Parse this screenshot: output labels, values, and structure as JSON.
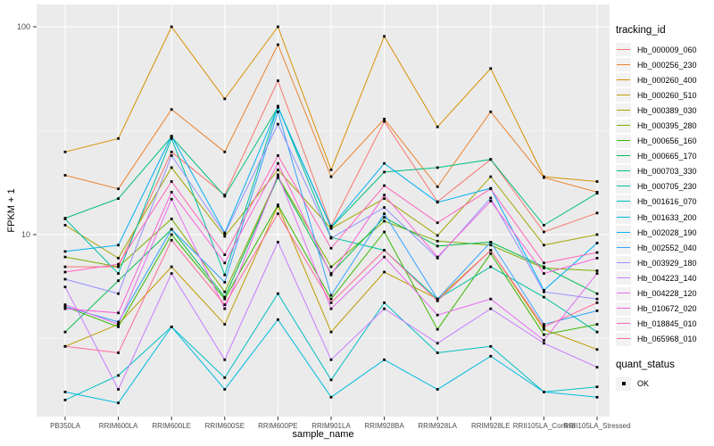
{
  "chart_data": {
    "type": "line",
    "title": "",
    "xlabel": "sample_name",
    "ylabel": "FPKM + 1",
    "y_scale": "log10",
    "ylim": [
      1.33,
      128
    ],
    "y_ticks": [
      10,
      100
    ],
    "y_minor_ticks": [
      3.162,
      31.62
    ],
    "grid": true,
    "panel_bg": "#EBEBEB",
    "grid_color": "#FFFFFF",
    "tick_color": "#333333",
    "tick_label_color": "#4D4D4D",
    "legend_position": "right",
    "legend_color_title": "tracking_id",
    "marker": {
      "shape": "square",
      "color": "#000000",
      "legend_title": "quant_status",
      "label": "OK"
    },
    "categories": [
      "PB350LA",
      "RRIM600LA",
      "RRIM600LE",
      "RRIM600SE",
      "RRIM600PE",
      "RRIM901LA",
      "RRIM928BA",
      "RRIM928LA",
      "RRIM928LE",
      "RRII105LA_Control",
      "RRII105LA_Stressed"
    ],
    "series": [
      {
        "name": "Hb_000009_060",
        "color": "#F8766D",
        "values": [
          7.0,
          7.0,
          25,
          15.5,
          55,
          11,
          35,
          14.4,
          23,
          10.3,
          12.7
        ]
      },
      {
        "name": "Hb_000256_230",
        "color": "#EA8331",
        "values": [
          19.3,
          16.6,
          40,
          25,
          82,
          19,
          36,
          17,
          39,
          18.8,
          16
        ]
      },
      {
        "name": "Hb_000260_400",
        "color": "#D89000",
        "values": [
          25,
          29,
          100,
          45,
          100,
          20.5,
          90,
          33,
          63,
          19,
          18
        ]
      },
      {
        "name": "Hb_000260_510",
        "color": "#C09B00",
        "values": [
          2.9,
          3.7,
          7.0,
          3.7,
          13.7,
          3.4,
          6.6,
          4.9,
          8.4,
          3.5,
          2.8
        ]
      },
      {
        "name": "Hb_000389_030",
        "color": "#A3A500",
        "values": [
          11.1,
          7.7,
          21,
          9.8,
          20.5,
          10.7,
          14.9,
          9.9,
          19,
          8.9,
          10
        ]
      },
      {
        "name": "Hb_000395_280",
        "color": "#7CAE00",
        "values": [
          7.8,
          7.0,
          11.9,
          5.3,
          19,
          7.0,
          11.6,
          9.3,
          8.9,
          6.9,
          6.7
        ]
      },
      {
        "name": "Hb_000656_160",
        "color": "#39B600",
        "values": [
          4.5,
          3.6,
          10,
          4.9,
          13.9,
          4.9,
          10.3,
          3.5,
          8.1,
          3.3,
          3.7
        ]
      },
      {
        "name": "Hb_000665_170",
        "color": "#00BB4E",
        "values": [
          3.4,
          6.0,
          10.6,
          5.0,
          18.8,
          6.5,
          12.1,
          8.8,
          9.2,
          7.0,
          5.2
        ]
      },
      {
        "name": "Hb_000703_330",
        "color": "#00BF7D",
        "values": [
          12,
          14.9,
          29.5,
          15.3,
          41,
          10.8,
          20,
          21,
          23,
          11.1,
          15.8
        ]
      },
      {
        "name": "Hb_000705_230",
        "color": "#00C1A3",
        "values": [
          11.9,
          6.5,
          29,
          6.4,
          41.5,
          9.7,
          8.4,
          4.9,
          7.0,
          5.0,
          3.4
        ]
      },
      {
        "name": "Hb_001616_070",
        "color": "#00BFC4",
        "values": [
          1.6,
          2.1,
          3.6,
          2.05,
          5.2,
          2.0,
          4.7,
          2.7,
          2.9,
          1.75,
          1.85
        ]
      },
      {
        "name": "Hb_001633_200",
        "color": "#00BAE0",
        "values": [
          1.75,
          1.55,
          3.6,
          1.8,
          3.9,
          1.65,
          2.5,
          1.8,
          2.6,
          1.75,
          1.65
        ]
      },
      {
        "name": "Hb_002028_190",
        "color": "#00B0F6",
        "values": [
          8.3,
          8.9,
          29.8,
          10.2,
          41,
          10.9,
          22,
          14.3,
          16.7,
          5.4,
          9.1
        ]
      },
      {
        "name": "Hb_002552_040",
        "color": "#35A2FF",
        "values": [
          4.5,
          3.8,
          10.6,
          5.9,
          39,
          5.1,
          12.6,
          4.9,
          9.2,
          3.7,
          4.3
        ]
      },
      {
        "name": "Hb_003929_180",
        "color": "#9590FF",
        "values": [
          6.1,
          5.2,
          24,
          10.1,
          34,
          9.6,
          13.5,
          7.7,
          15,
          5.3,
          4.9
        ]
      },
      {
        "name": "Hb_004223_140",
        "color": "#C77CFF",
        "values": [
          5.6,
          1.8,
          6.5,
          2.5,
          9.2,
          2.5,
          4.4,
          3.0,
          4.4,
          3.0,
          2.3
        ]
      },
      {
        "name": "Hb_004228_120",
        "color": "#E76BF3",
        "values": [
          4.6,
          3.7,
          14.8,
          4.4,
          19.4,
          4.4,
          7.8,
          4.1,
          4.9,
          3.1,
          6.5
        ]
      },
      {
        "name": "Hb_010672_020",
        "color": "#FA62DB",
        "values": [
          4.4,
          4.2,
          16,
          7.3,
          22,
          6.4,
          15.5,
          7.8,
          14.5,
          6.5,
          7.7
        ]
      },
      {
        "name": "Hb_018845_010",
        "color": "#FF62BC",
        "values": [
          6.6,
          7.2,
          18,
          8.0,
          24,
          8.6,
          17.2,
          11.4,
          16.6,
          7.3,
          8.2
        ]
      },
      {
        "name": "Hb_065968_010",
        "color": "#FF6A98",
        "values": [
          2.9,
          2.7,
          9.4,
          4.6,
          12.6,
          4.7,
          8.4,
          4.8,
          8.4,
          3.6,
          4.7
        ]
      }
    ]
  }
}
